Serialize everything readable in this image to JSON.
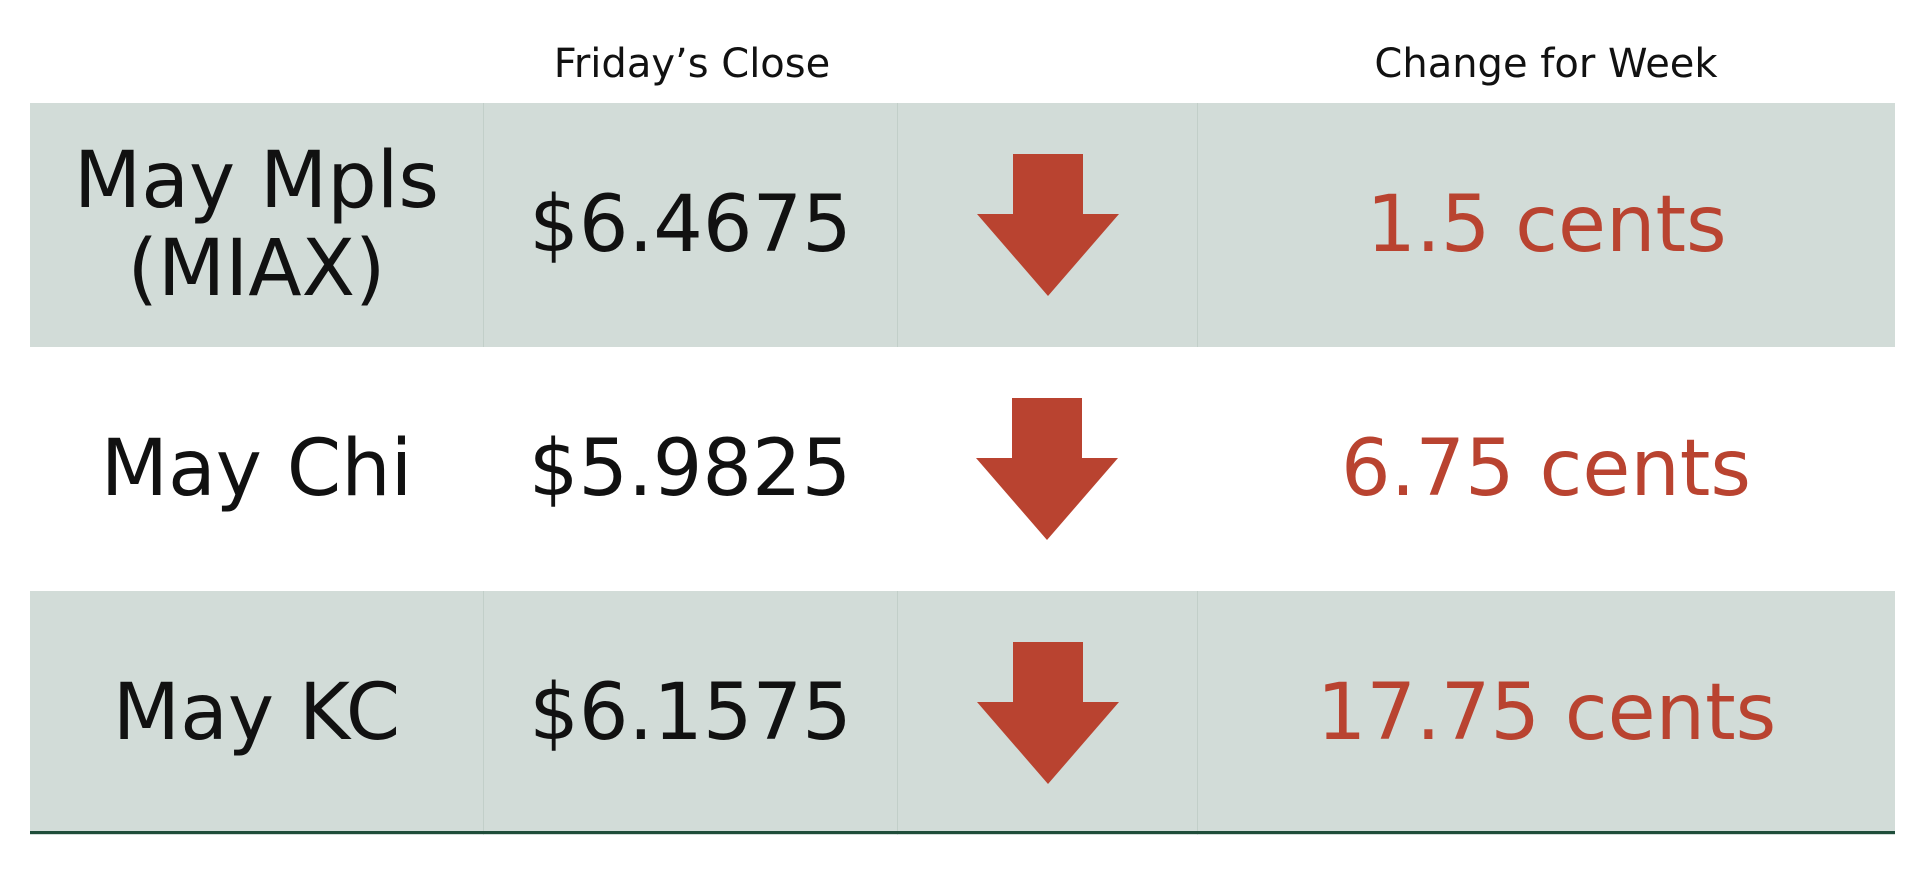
{
  "headers": {
    "close": "Friday’s Close",
    "change": "Change for Week"
  },
  "rows": [
    {
      "name_line1": "May Mpls",
      "name_line2": "(MIAX)",
      "close": "$6.4675",
      "direction": "down",
      "change": "1.5 cents"
    },
    {
      "name_line1": "May Chi",
      "name_line2": "",
      "close": "$5.9825",
      "direction": "down",
      "change": "6.75 cents"
    },
    {
      "name_line1": "May KC",
      "name_line2": "",
      "close": "$6.1575",
      "direction": "down",
      "change": "17.75 cents"
    }
  ],
  "colors": {
    "shaded_row": "#d2dcd8",
    "arrow": "#b94330",
    "change_text": "#b94330",
    "bottom_rule": "#1f4d3a"
  },
  "icons": [
    "down-arrow-icon"
  ]
}
